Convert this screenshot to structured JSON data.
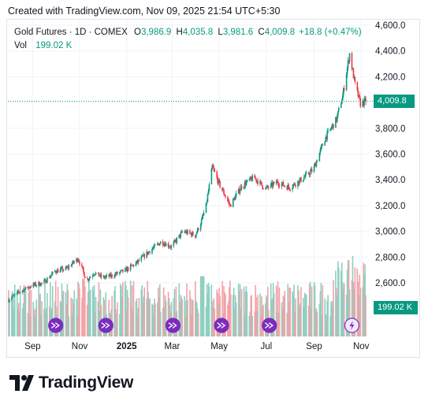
{
  "header": {
    "created_text": "Created with TradingView.com, Nov 09, 2025 21:54 UTC+5:30"
  },
  "legend": {
    "symbol": "Gold Futures · 1D · COMEX",
    "open_label": "O",
    "open": "3,986.9",
    "high_label": "H",
    "high": "4,035.8",
    "low_label": "L",
    "low": "3,981.6",
    "close_label": "C",
    "close": "4,009.8",
    "change": "+18.8 (+0.47%)",
    "vol_label": "Vol",
    "vol": "199.02 K"
  },
  "price_tag": {
    "label": "4,009.8",
    "color": "#089981"
  },
  "volume_tag": {
    "label": "199.02 K",
    "color": "#089981"
  },
  "colors": {
    "up": "#089981",
    "down": "#f23645",
    "vol_up": "#8fcfc0",
    "vol_down": "#f2a3a8",
    "event": "#7b2cbf"
  },
  "brand": {
    "name": "TradingView"
  },
  "chart_data": {
    "type": "candlestick",
    "y_axis_ticks": [
      "2,600.0",
      "2,800.0",
      "3,000.0",
      "3,200.0",
      "3,400.0",
      "3,600.0",
      "3,800.0",
      "4,000.0",
      "4,200.0",
      "4,400.0",
      "4,600.0"
    ],
    "y_tick_values": [
      2600,
      2800,
      3000,
      3200,
      3400,
      3600,
      3800,
      4000,
      4200,
      4400,
      4600
    ],
    "ylim": [
      2450,
      4600
    ],
    "x_axis_ticks": [
      "Sep",
      "Nov",
      "2025",
      "Mar",
      "May",
      "Jul",
      "Sep",
      "Nov"
    ],
    "x_tick_dates": [
      "2024-09-01",
      "2024-11-01",
      "2025-01-01",
      "2025-03-01",
      "2025-05-01",
      "2025-07-01",
      "2025-09-01",
      "2025-11-01"
    ],
    "xlim": [
      "2024-07-31",
      "2025-11-11"
    ],
    "last_close": 4009.8,
    "close_series": {
      "dates": [
        "2024-08-01",
        "2024-08-15",
        "2024-08-31",
        "2024-09-15",
        "2024-09-30",
        "2024-10-15",
        "2024-10-30",
        "2024-11-10",
        "2024-11-20",
        "2024-12-01",
        "2024-12-15",
        "2024-12-31",
        "2025-01-15",
        "2025-01-31",
        "2025-02-15",
        "2025-02-28",
        "2025-03-15",
        "2025-03-31",
        "2025-04-08",
        "2025-04-14",
        "2025-04-22",
        "2025-04-30",
        "2025-05-15",
        "2025-05-30",
        "2025-06-15",
        "2025-06-30",
        "2025-07-15",
        "2025-07-31",
        "2025-08-15",
        "2025-08-31",
        "2025-09-15",
        "2025-09-30",
        "2025-10-08",
        "2025-10-17",
        "2025-10-24",
        "2025-10-31",
        "2025-11-07"
      ],
      "values": [
        2470,
        2530,
        2580,
        2600,
        2690,
        2710,
        2790,
        2620,
        2680,
        2640,
        2660,
        2700,
        2760,
        2850,
        2920,
        2880,
        3000,
        2970,
        3080,
        3200,
        3500,
        3380,
        3200,
        3350,
        3420,
        3330,
        3380,
        3340,
        3400,
        3480,
        3720,
        3870,
        4050,
        4380,
        4140,
        3990,
        4010
      ]
    },
    "volume_series": {
      "label": "Vol",
      "max_date": "2025-10-21",
      "max_value": "820"
    },
    "events": [
      "2024-10-01",
      "2024-12-05",
      "2025-03-02",
      "2025-05-04",
      "2025-07-05",
      "2025-10-20"
    ]
  }
}
